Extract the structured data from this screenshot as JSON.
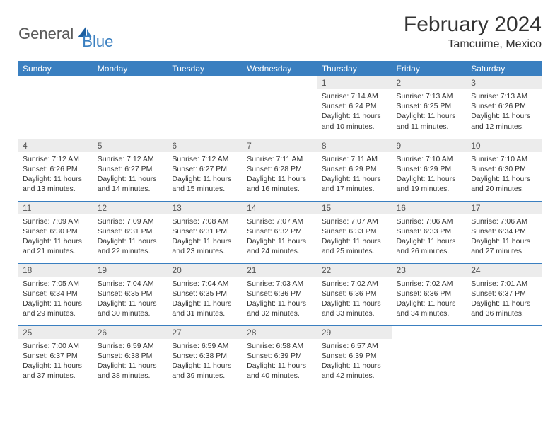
{
  "brand": {
    "general": "General",
    "blue": "Blue"
  },
  "title": "February 2024",
  "location": "Tamcuime, Mexico",
  "colors": {
    "headerBg": "#3a7fc0",
    "headerText": "#ffffff",
    "dayNumBg": "#ececec",
    "dayNumText": "#555555",
    "bodyText": "#333333",
    "border": "#3a7fc0",
    "logoGray": "#5a5a5a",
    "logoBlue": "#3a7fc0",
    "background": "#ffffff"
  },
  "typography": {
    "titleSize": 30,
    "locationSize": 16,
    "dayHeaderSize": 12,
    "dayNumSize": 12,
    "cellTextSize": 10.5,
    "logoSize": 22
  },
  "dayHeaders": [
    "Sunday",
    "Monday",
    "Tuesday",
    "Wednesday",
    "Thursday",
    "Friday",
    "Saturday"
  ],
  "weeks": [
    [
      null,
      null,
      null,
      null,
      {
        "n": "1",
        "sr": "Sunrise: 7:14 AM",
        "ss": "Sunset: 6:24 PM",
        "d1": "Daylight: 11 hours",
        "d2": "and 10 minutes."
      },
      {
        "n": "2",
        "sr": "Sunrise: 7:13 AM",
        "ss": "Sunset: 6:25 PM",
        "d1": "Daylight: 11 hours",
        "d2": "and 11 minutes."
      },
      {
        "n": "3",
        "sr": "Sunrise: 7:13 AM",
        "ss": "Sunset: 6:26 PM",
        "d1": "Daylight: 11 hours",
        "d2": "and 12 minutes."
      }
    ],
    [
      {
        "n": "4",
        "sr": "Sunrise: 7:12 AM",
        "ss": "Sunset: 6:26 PM",
        "d1": "Daylight: 11 hours",
        "d2": "and 13 minutes."
      },
      {
        "n": "5",
        "sr": "Sunrise: 7:12 AM",
        "ss": "Sunset: 6:27 PM",
        "d1": "Daylight: 11 hours",
        "d2": "and 14 minutes."
      },
      {
        "n": "6",
        "sr": "Sunrise: 7:12 AM",
        "ss": "Sunset: 6:27 PM",
        "d1": "Daylight: 11 hours",
        "d2": "and 15 minutes."
      },
      {
        "n": "7",
        "sr": "Sunrise: 7:11 AM",
        "ss": "Sunset: 6:28 PM",
        "d1": "Daylight: 11 hours",
        "d2": "and 16 minutes."
      },
      {
        "n": "8",
        "sr": "Sunrise: 7:11 AM",
        "ss": "Sunset: 6:29 PM",
        "d1": "Daylight: 11 hours",
        "d2": "and 17 minutes."
      },
      {
        "n": "9",
        "sr": "Sunrise: 7:10 AM",
        "ss": "Sunset: 6:29 PM",
        "d1": "Daylight: 11 hours",
        "d2": "and 19 minutes."
      },
      {
        "n": "10",
        "sr": "Sunrise: 7:10 AM",
        "ss": "Sunset: 6:30 PM",
        "d1": "Daylight: 11 hours",
        "d2": "and 20 minutes."
      }
    ],
    [
      {
        "n": "11",
        "sr": "Sunrise: 7:09 AM",
        "ss": "Sunset: 6:30 PM",
        "d1": "Daylight: 11 hours",
        "d2": "and 21 minutes."
      },
      {
        "n": "12",
        "sr": "Sunrise: 7:09 AM",
        "ss": "Sunset: 6:31 PM",
        "d1": "Daylight: 11 hours",
        "d2": "and 22 minutes."
      },
      {
        "n": "13",
        "sr": "Sunrise: 7:08 AM",
        "ss": "Sunset: 6:31 PM",
        "d1": "Daylight: 11 hours",
        "d2": "and 23 minutes."
      },
      {
        "n": "14",
        "sr": "Sunrise: 7:07 AM",
        "ss": "Sunset: 6:32 PM",
        "d1": "Daylight: 11 hours",
        "d2": "and 24 minutes."
      },
      {
        "n": "15",
        "sr": "Sunrise: 7:07 AM",
        "ss": "Sunset: 6:33 PM",
        "d1": "Daylight: 11 hours",
        "d2": "and 25 minutes."
      },
      {
        "n": "16",
        "sr": "Sunrise: 7:06 AM",
        "ss": "Sunset: 6:33 PM",
        "d1": "Daylight: 11 hours",
        "d2": "and 26 minutes."
      },
      {
        "n": "17",
        "sr": "Sunrise: 7:06 AM",
        "ss": "Sunset: 6:34 PM",
        "d1": "Daylight: 11 hours",
        "d2": "and 27 minutes."
      }
    ],
    [
      {
        "n": "18",
        "sr": "Sunrise: 7:05 AM",
        "ss": "Sunset: 6:34 PM",
        "d1": "Daylight: 11 hours",
        "d2": "and 29 minutes."
      },
      {
        "n": "19",
        "sr": "Sunrise: 7:04 AM",
        "ss": "Sunset: 6:35 PM",
        "d1": "Daylight: 11 hours",
        "d2": "and 30 minutes."
      },
      {
        "n": "20",
        "sr": "Sunrise: 7:04 AM",
        "ss": "Sunset: 6:35 PM",
        "d1": "Daylight: 11 hours",
        "d2": "and 31 minutes."
      },
      {
        "n": "21",
        "sr": "Sunrise: 7:03 AM",
        "ss": "Sunset: 6:36 PM",
        "d1": "Daylight: 11 hours",
        "d2": "and 32 minutes."
      },
      {
        "n": "22",
        "sr": "Sunrise: 7:02 AM",
        "ss": "Sunset: 6:36 PM",
        "d1": "Daylight: 11 hours",
        "d2": "and 33 minutes."
      },
      {
        "n": "23",
        "sr": "Sunrise: 7:02 AM",
        "ss": "Sunset: 6:36 PM",
        "d1": "Daylight: 11 hours",
        "d2": "and 34 minutes."
      },
      {
        "n": "24",
        "sr": "Sunrise: 7:01 AM",
        "ss": "Sunset: 6:37 PM",
        "d1": "Daylight: 11 hours",
        "d2": "and 36 minutes."
      }
    ],
    [
      {
        "n": "25",
        "sr": "Sunrise: 7:00 AM",
        "ss": "Sunset: 6:37 PM",
        "d1": "Daylight: 11 hours",
        "d2": "and 37 minutes."
      },
      {
        "n": "26",
        "sr": "Sunrise: 6:59 AM",
        "ss": "Sunset: 6:38 PM",
        "d1": "Daylight: 11 hours",
        "d2": "and 38 minutes."
      },
      {
        "n": "27",
        "sr": "Sunrise: 6:59 AM",
        "ss": "Sunset: 6:38 PM",
        "d1": "Daylight: 11 hours",
        "d2": "and 39 minutes."
      },
      {
        "n": "28",
        "sr": "Sunrise: 6:58 AM",
        "ss": "Sunset: 6:39 PM",
        "d1": "Daylight: 11 hours",
        "d2": "and 40 minutes."
      },
      {
        "n": "29",
        "sr": "Sunrise: 6:57 AM",
        "ss": "Sunset: 6:39 PM",
        "d1": "Daylight: 11 hours",
        "d2": "and 42 minutes."
      },
      null,
      null
    ]
  ]
}
